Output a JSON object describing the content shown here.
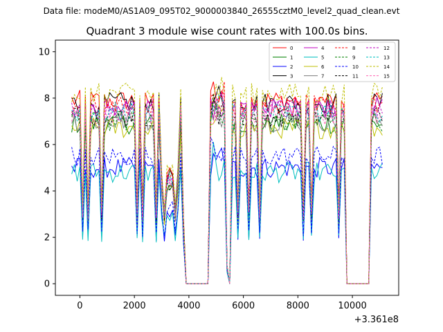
{
  "chart_data": {
    "type": "line",
    "suptitle": "Data file: modeM0/AS1A09_095T02_9000003840_26555cztM0_level2_quad_clean.evt",
    "title": "Quadrant 3 module wise count rates with 100.0s bins.",
    "xlabel": "",
    "ylabel": "",
    "x_offset_label": "+3.361e8",
    "xlim": [
      -900,
      11700
    ],
    "ylim": [
      -0.5,
      10.5
    ],
    "x_ticks": [
      0,
      2000,
      4000,
      6000,
      8000,
      10000
    ],
    "y_ticks": [
      0,
      2,
      4,
      6,
      8,
      10
    ],
    "x_tick_labels": [
      "0",
      "2000",
      "4000",
      "6000",
      "8000",
      "10000"
    ],
    "y_tick_labels": [
      "0",
      "2",
      "4",
      "6",
      "8",
      "10"
    ],
    "grid": false,
    "legend_position": "top-right",
    "legend_columns": 4,
    "segments": [
      [
        -300,
        3800
      ],
      [
        3900,
        4700
      ],
      [
        4800,
        5400
      ],
      [
        5500,
        9700
      ],
      [
        9800,
        10600
      ],
      [
        10700,
        11100
      ]
    ],
    "series": [
      {
        "name": "0",
        "color": "#ff0000",
        "dash": "solid",
        "base": 7.9
      },
      {
        "name": "1",
        "color": "#008000",
        "dash": "solid",
        "base": 6.9
      },
      {
        "name": "2",
        "color": "#0000ff",
        "dash": "solid",
        "base": 5.0
      },
      {
        "name": "3",
        "color": "#000000",
        "dash": "solid",
        "base": 7.8
      },
      {
        "name": "4",
        "color": "#bf00bf",
        "dash": "solid",
        "base": 7.6
      },
      {
        "name": "5",
        "color": "#00bfbf",
        "dash": "solid",
        "base": 4.8
      },
      {
        "name": "6",
        "color": "#bfbf00",
        "dash": "solid",
        "base": 6.7
      },
      {
        "name": "7",
        "color": "#808080",
        "dash": "solid",
        "base": 7.0
      },
      {
        "name": "8",
        "color": "#ff0000",
        "dash": "dashed",
        "base": 7.7
      },
      {
        "name": "9",
        "color": "#008000",
        "dash": "dashed",
        "base": 7.0
      },
      {
        "name": "10",
        "color": "#0000ff",
        "dash": "dashed",
        "base": 5.5
      },
      {
        "name": "11",
        "color": "#000000",
        "dash": "dashed",
        "base": 7.2
      },
      {
        "name": "12",
        "color": "#bf00bf",
        "dash": "dashed",
        "base": 7.5
      },
      {
        "name": "13",
        "color": "#00bfbf",
        "dash": "dashed",
        "base": 7.4
      },
      {
        "name": "14",
        "color": "#bfbf00",
        "dash": "dashed",
        "base": 8.2
      },
      {
        "name": "15",
        "color": "#ff69b4",
        "dash": "dashed",
        "base": 7.3
      }
    ]
  }
}
